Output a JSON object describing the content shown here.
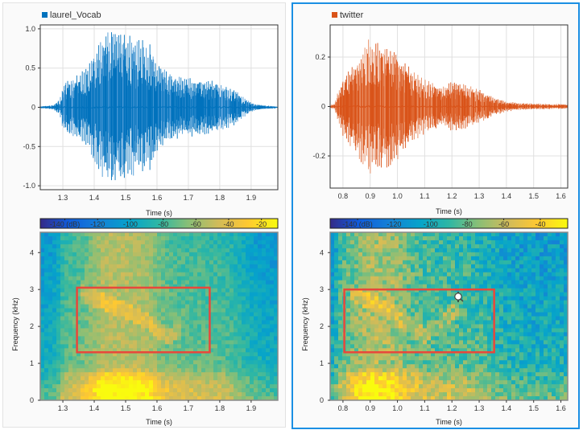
{
  "panels": [
    {
      "selected": false,
      "signal_name": "laurel_Vocab",
      "color": "#0072bd",
      "light_color": "#4d9ad6"
    },
    {
      "selected": true,
      "signal_name": "twitter",
      "color": "#d95319",
      "light_color": "#e88a5e"
    }
  ],
  "chart_data": [
    {
      "type": "line",
      "panel": "left",
      "title": "",
      "legend": [
        "laurel_Vocab"
      ],
      "legend_placement": "top-left",
      "xlabel": "Time (s)",
      "ylabel": "",
      "xlim": [
        1.228,
        1.985
      ],
      "ylim": [
        -1.05,
        1.05
      ],
      "xticks": [
        1.3,
        1.4,
        1.5,
        1.6,
        1.7,
        1.8,
        1.9
      ],
      "xtick_labels": [
        "1.3",
        "1.4",
        "1.5",
        "1.6",
        "1.7",
        "1.8",
        "1.9"
      ],
      "yticks": [
        1.0,
        0.5,
        0,
        -0.5,
        -1.0
      ],
      "ytick_labels": [
        "1.0",
        "0.5",
        "0",
        "-0.5",
        "-1.0"
      ],
      "grid": true,
      "envelope": {
        "t": [
          1.228,
          1.27,
          1.29,
          1.3,
          1.33,
          1.36,
          1.39,
          1.41,
          1.43,
          1.46,
          1.49,
          1.52,
          1.55,
          1.58,
          1.6,
          1.62,
          1.65,
          1.68,
          1.72,
          1.76,
          1.8,
          1.84,
          1.87,
          1.9,
          1.93,
          1.985
        ],
        "amp": [
          0.01,
          0.03,
          0.1,
          0.3,
          0.37,
          0.45,
          0.62,
          0.8,
          0.95,
          0.96,
          0.95,
          0.92,
          0.88,
          0.8,
          0.62,
          0.5,
          0.42,
          0.4,
          0.38,
          0.35,
          0.32,
          0.25,
          0.15,
          0.06,
          0.03,
          0.01
        ]
      }
    },
    {
      "type": "heatmap",
      "panel": "left",
      "title": "",
      "xlabel": "Time (s)",
      "ylabel": "Frequency (kHz)",
      "xlim": [
        1.228,
        1.985
      ],
      "ylim": [
        0,
        4.55
      ],
      "xticks": [
        1.3,
        1.4,
        1.5,
        1.6,
        1.7,
        1.8,
        1.9
      ],
      "xtick_labels": [
        "1.3",
        "1.4",
        "1.5",
        "1.6",
        "1.7",
        "1.8",
        "1.9"
      ],
      "yticks": [
        0,
        1,
        2,
        3,
        4
      ],
      "ytick_labels": [
        "0",
        "1",
        "2",
        "3",
        "4"
      ],
      "colorbar": {
        "unit_label": "(dB)",
        "range": [
          -155,
          -10
        ],
        "ticks": [
          -140,
          -120,
          -100,
          -80,
          -60,
          -40,
          -20
        ],
        "tick_labels": [
          "-140 (dB)",
          "-120",
          "-100",
          "-80",
          "-60",
          "-40",
          "-20"
        ],
        "colormap": "parula"
      },
      "region_of_interest": {
        "t": [
          1.345,
          1.768
        ],
        "f": [
          1.3,
          3.05
        ],
        "color": "#e8473b"
      },
      "formant_track": {
        "t": [
          1.36,
          1.45,
          1.55,
          1.6,
          1.64,
          1.68
        ],
        "f": [
          2.9,
          2.6,
          2.25,
          1.9,
          1.7,
          2.0
        ]
      }
    },
    {
      "type": "line",
      "panel": "right",
      "title": "",
      "legend": [
        "twitter"
      ],
      "legend_placement": "top-left",
      "xlabel": "Time (s)",
      "ylabel": "",
      "xlim": [
        0.753,
        1.625
      ],
      "ylim": [
        -0.33,
        0.33
      ],
      "xticks": [
        0.8,
        0.9,
        1.0,
        1.1,
        1.2,
        1.3,
        1.4,
        1.5,
        1.6
      ],
      "xtick_labels": [
        "0.8",
        "0.9",
        "1.0",
        "1.1",
        "1.2",
        "1.3",
        "1.4",
        "1.5",
        "1.6"
      ],
      "yticks": [
        0.2,
        0,
        -0.2
      ],
      "ytick_labels": [
        "0.2",
        "0",
        "-0.2"
      ],
      "grid": true,
      "envelope": {
        "t": [
          0.753,
          0.77,
          0.78,
          0.8,
          0.84,
          0.87,
          0.9,
          0.93,
          0.97,
          1.0,
          1.05,
          1.1,
          1.15,
          1.2,
          1.25,
          1.3,
          1.35,
          1.4,
          1.45,
          1.5,
          1.625
        ],
        "amp": [
          0.008,
          0.01,
          0.06,
          0.12,
          0.18,
          0.23,
          0.29,
          0.26,
          0.25,
          0.22,
          0.15,
          0.11,
          0.09,
          0.1,
          0.09,
          0.07,
          0.04,
          0.02,
          0.015,
          0.012,
          0.01
        ]
      }
    },
    {
      "type": "heatmap",
      "panel": "right",
      "title": "",
      "xlabel": "Time (s)",
      "ylabel": "Frequency (kHz)",
      "xlim": [
        0.753,
        1.625
      ],
      "ylim": [
        0,
        4.55
      ],
      "xticks": [
        0.8,
        0.9,
        1.0,
        1.1,
        1.2,
        1.3,
        1.4,
        1.5,
        1.6
      ],
      "xtick_labels": [
        "0.8",
        "0.9",
        "1.0",
        "1.1",
        "1.2",
        "1.3",
        "1.4",
        "1.5",
        "1.6"
      ],
      "yticks": [
        0,
        1,
        2,
        3,
        4
      ],
      "ytick_labels": [
        "0",
        "1",
        "2",
        "3",
        "4"
      ],
      "colorbar": {
        "unit_label": "(dB)",
        "range": [
          -155,
          -25
        ],
        "ticks": [
          -140,
          -120,
          -100,
          -80,
          -60,
          -40
        ],
        "tick_labels": [
          "-140 (dB)",
          "-120",
          "-100",
          "-80",
          "-60",
          "-40"
        ],
        "colormap": "parula"
      },
      "region_of_interest": {
        "t": [
          0.805,
          1.355
        ],
        "f": [
          1.3,
          3.0
        ],
        "color": "#e8473b"
      },
      "formant_track": {
        "t": [
          0.83,
          0.95,
          1.05,
          1.1,
          1.15,
          1.22
        ],
        "f": [
          2.9,
          2.5,
          2.0,
          1.75,
          2.0,
          2.55
        ]
      }
    }
  ]
}
